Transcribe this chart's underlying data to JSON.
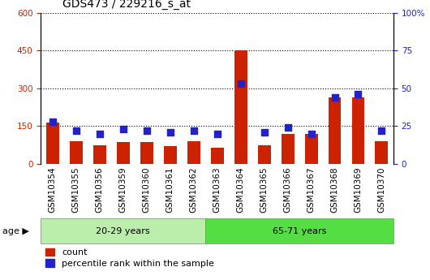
{
  "title": "GDS473 / 229216_s_at",
  "samples": [
    "GSM10354",
    "GSM10355",
    "GSM10356",
    "GSM10359",
    "GSM10360",
    "GSM10361",
    "GSM10362",
    "GSM10363",
    "GSM10364",
    "GSM10365",
    "GSM10366",
    "GSM10367",
    "GSM10368",
    "GSM10369",
    "GSM10370"
  ],
  "count": [
    165,
    90,
    75,
    85,
    85,
    70,
    90,
    65,
    450,
    75,
    120,
    120,
    265,
    265,
    90
  ],
  "percentile": [
    28,
    22,
    20,
    23,
    22,
    21,
    22,
    20,
    53,
    21,
    24,
    20,
    44,
    46,
    22
  ],
  "group1_label": "20-29 years",
  "group2_label": "65-71 years",
  "group1_count": 7,
  "group2_count": 8,
  "age_label": "age",
  "ylim_left": [
    0,
    600
  ],
  "ylim_right": [
    0,
    100
  ],
  "yticks_left": [
    0,
    150,
    300,
    450,
    600
  ],
  "yticks_right": [
    0,
    25,
    50,
    75,
    100
  ],
  "bar_color": "#cc2200",
  "dot_color": "#2222cc",
  "group1_bg": "#bbeeaa",
  "group2_bg": "#55dd44",
  "plot_bg": "#ffffff",
  "tick_area_bg": "#cccccc",
  "axis_color_left": "#cc2200",
  "axis_color_right": "#2222cc",
  "title_fontsize": 10,
  "tick_fontsize": 7.5,
  "bar_width": 0.55,
  "dot_size": 28
}
